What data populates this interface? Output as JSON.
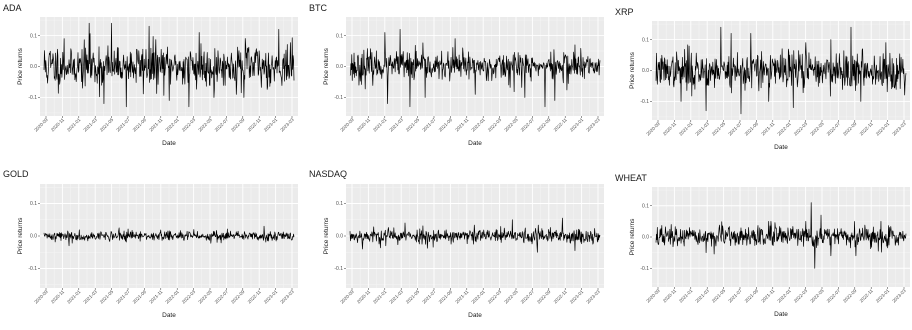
{
  "chart_data": [
    {
      "type": "line",
      "title": "ADA",
      "xlabel": "Date",
      "ylabel": "Price returns",
      "ylim": [
        -0.16,
        0.16
      ],
      "yticks": [
        "0.1",
        "0.0",
        "-0.1"
      ],
      "xticks": [
        "2020-09",
        "2020-11",
        "2021-01",
        "2021-03",
        "2021-05",
        "2021-07",
        "2021-09",
        "2021-11",
        "2022-01",
        "2022-03",
        "2022-05",
        "2022-07",
        "2022-09",
        "2022-11",
        "2023-01",
        "2023-03"
      ],
      "series": [
        {
          "volatility": 0.032,
          "spikes": [
            [
              0.08,
              0.09
            ],
            [
              0.18,
              0.14
            ],
            [
              0.24,
              -0.12
            ],
            [
              0.27,
              0.14
            ],
            [
              0.33,
              -0.13
            ],
            [
              0.42,
              0.13
            ],
            [
              0.5,
              -0.11
            ],
            [
              0.58,
              -0.13
            ],
            [
              0.62,
              0.11
            ],
            [
              0.68,
              -0.1
            ],
            [
              0.8,
              -0.1
            ],
            [
              0.94,
              0.12
            ]
          ],
          "seed": 11
        }
      ]
    },
    {
      "type": "line",
      "title": "BTC",
      "xlabel": "Date",
      "ylabel": "Price returns",
      "ylim": [
        -0.16,
        0.16
      ],
      "yticks": [
        "0.1",
        "0.0",
        "-0.1"
      ],
      "xticks": [
        "2020-09",
        "2020-11",
        "2021-01",
        "2021-03",
        "2021-05",
        "2021-07",
        "2021-09",
        "2021-11",
        "2022-01",
        "2022-03",
        "2022-05",
        "2022-07",
        "2022-09",
        "2022-11",
        "2023-01",
        "2023-03"
      ],
      "series": [
        {
          "volatility": 0.022,
          "spikes": [
            [
              0.14,
              0.11
            ],
            [
              0.15,
              -0.12
            ],
            [
              0.2,
              0.12
            ],
            [
              0.24,
              -0.13
            ],
            [
              0.3,
              -0.1
            ],
            [
              0.42,
              0.09
            ],
            [
              0.5,
              -0.09
            ],
            [
              0.7,
              -0.1
            ],
            [
              0.78,
              -0.13
            ],
            [
              0.82,
              -0.11
            ],
            [
              0.9,
              0.07
            ]
          ],
          "seed": 23
        }
      ]
    },
    {
      "type": "line",
      "title": "XRP",
      "xlabel": "Date",
      "ylabel": "Price returns",
      "ylim": [
        -0.16,
        0.16
      ],
      "yticks": [
        "0.1",
        "0.0",
        "-0.1"
      ],
      "xticks": [
        "2020-09",
        "2020-11",
        "2021-01",
        "2021-03",
        "2021-05",
        "2021-07",
        "2021-09",
        "2021-11",
        "2022-01",
        "2022-03",
        "2022-05",
        "2022-07",
        "2022-09",
        "2022-11",
        "2023-01",
        "2023-03"
      ],
      "series": [
        {
          "volatility": 0.028,
          "spikes": [
            [
              0.1,
              -0.1
            ],
            [
              0.2,
              -0.13
            ],
            [
              0.26,
              0.14
            ],
            [
              0.3,
              0.12
            ],
            [
              0.34,
              -0.14
            ],
            [
              0.38,
              0.12
            ],
            [
              0.45,
              -0.1
            ],
            [
              0.55,
              -0.12
            ],
            [
              0.6,
              0.09
            ],
            [
              0.7,
              0.1
            ],
            [
              0.78,
              0.14
            ],
            [
              0.82,
              -0.1
            ],
            [
              0.92,
              0.09
            ]
          ],
          "seed": 37
        }
      ]
    },
    {
      "type": "line",
      "title": "GOLD",
      "xlabel": "Date",
      "ylabel": "Price returns",
      "ylim": [
        -0.16,
        0.16
      ],
      "yticks": [
        "0.1",
        "0.0",
        "-0.1"
      ],
      "xticks": [
        "2020-09",
        "2020-11",
        "2021-01",
        "2021-03",
        "2021-05",
        "2021-07",
        "2021-09",
        "2021-11",
        "2022-01",
        "2022-03",
        "2022-05",
        "2022-07",
        "2022-09",
        "2022-11",
        "2023-01",
        "2023-03"
      ],
      "series": [
        {
          "volatility": 0.007,
          "spikes": [
            [
              0.1,
              -0.03
            ],
            [
              0.3,
              0.025
            ],
            [
              0.6,
              0.02
            ],
            [
              0.88,
              0.03
            ]
          ],
          "seed": 41
        }
      ]
    },
    {
      "type": "line",
      "title": "NASDAQ",
      "xlabel": "Date",
      "ylabel": "Price returns",
      "ylim": [
        -0.16,
        0.16
      ],
      "yticks": [
        "0.1",
        "0.0",
        "-0.1"
      ],
      "xticks": [
        "2020-09",
        "2020-11",
        "2021-01",
        "2021-03",
        "2021-05",
        "2021-07",
        "2021-09",
        "2021-11",
        "2022-01",
        "2022-03",
        "2022-05",
        "2022-07",
        "2022-09",
        "2022-11",
        "2023-01",
        "2023-03"
      ],
      "series": [
        {
          "volatility": 0.011,
          "spikes": [
            [
              0.05,
              -0.04
            ],
            [
              0.22,
              0.04
            ],
            [
              0.65,
              0.05
            ],
            [
              0.75,
              -0.05
            ],
            [
              0.85,
              0.055
            ],
            [
              0.9,
              -0.045
            ]
          ],
          "seed": 53
        }
      ]
    },
    {
      "type": "line",
      "title": "WHEAT",
      "xlabel": "Date",
      "ylabel": "Price returns",
      "ylim": [
        -0.16,
        0.16
      ],
      "yticks": [
        "0.1",
        "0.0",
        "-0.1"
      ],
      "xticks": [
        "2020-09",
        "2020-11",
        "2021-01",
        "2021-03",
        "2021-05",
        "2021-07",
        "2021-09",
        "2021-11",
        "2022-01",
        "2022-03",
        "2022-05",
        "2022-07",
        "2022-09",
        "2022-11",
        "2023-01",
        "2023-03"
      ],
      "series": [
        {
          "volatility": 0.015,
          "spikes": [
            [
              0.2,
              -0.05
            ],
            [
              0.45,
              0.05
            ],
            [
              0.6,
              0.05
            ],
            [
              0.62,
              0.11
            ],
            [
              0.635,
              -0.1
            ],
            [
              0.66,
              0.07
            ],
            [
              0.7,
              -0.06
            ],
            [
              0.8,
              -0.06
            ],
            [
              0.9,
              0.05
            ]
          ],
          "seed": 67
        }
      ]
    }
  ],
  "colors": {
    "panel_bg": "#ebebeb",
    "grid_major": "#ffffff",
    "grid_minor": "#f5f5f5",
    "line": "#000000"
  }
}
